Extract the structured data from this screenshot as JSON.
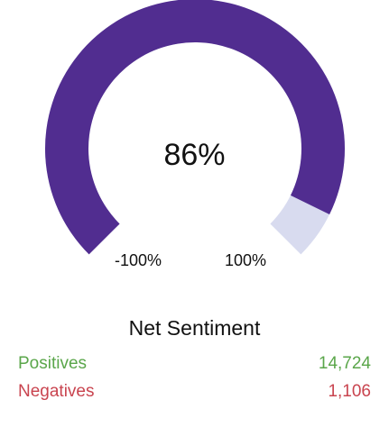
{
  "gauge": {
    "value_label": "86%",
    "value_fraction": 0.93,
    "min_label": "-100%",
    "max_label": "100%",
    "fill_color": "#512d90",
    "track_color": "#d8dbef"
  },
  "summary": {
    "title": "Net Sentiment",
    "rows": [
      {
        "label": "Positives",
        "value": "14,724",
        "color": "#5aa64a"
      },
      {
        "label": "Negatives",
        "value": "1,106",
        "color": "#c9444f"
      }
    ]
  }
}
